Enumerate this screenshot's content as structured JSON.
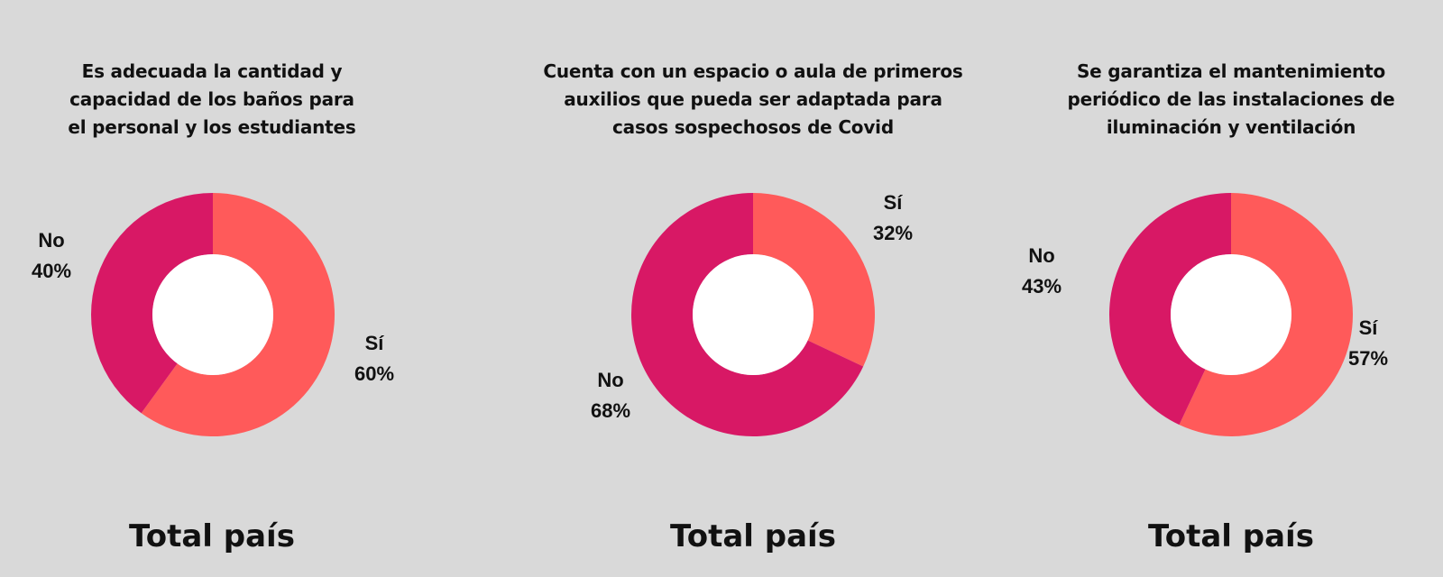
{
  "colors": {
    "background": "#d9d9d9",
    "si": "#ff5a5a",
    "no": "#d81865",
    "hole": "#ffffff",
    "text": "#111111"
  },
  "chart_data": [
    {
      "type": "pie",
      "title": "Es adecuada la cantidad y capacidad de los baños para el personal y los estudiantes",
      "title_lines": [
        "Es adecuada la cantidad y",
        "capacidad de los baños para",
        "el personal y los estudiantes"
      ],
      "footer": "Total país",
      "slices": [
        {
          "name": "Sí",
          "value": 60,
          "value_label": "60%",
          "color": "#ff5a5a"
        },
        {
          "name": "No",
          "value": 40,
          "value_label": "40%",
          "color": "#d81865"
        }
      ]
    },
    {
      "type": "pie",
      "title": "Cuenta con un espacio o aula de primeros auxilios que pueda ser adaptada para casos sospechosos de Covid",
      "title_lines": [
        "Cuenta con un espacio o aula de primeros",
        "auxilios que pueda ser adaptada para",
        "casos sospechosos de Covid"
      ],
      "footer": "Total país",
      "slices": [
        {
          "name": "Sí",
          "value": 32,
          "value_label": "32%",
          "color": "#ff5a5a"
        },
        {
          "name": "No",
          "value": 68,
          "value_label": "68%",
          "color": "#d81865"
        }
      ]
    },
    {
      "type": "pie",
      "title": "Se garantiza el mantenimiento periódico de las instalaciones de iluminación y ventilación",
      "title_lines": [
        "Se garantiza el mantenimiento",
        "periódico de las instalaciones de",
        "iluminación y ventilación"
      ],
      "footer": "Total país",
      "slices": [
        {
          "name": "Sí",
          "value": 57,
          "value_label": "57%",
          "color": "#ff5a5a"
        },
        {
          "name": "No",
          "value": 43,
          "value_label": "43%",
          "color": "#d81865"
        }
      ]
    }
  ]
}
